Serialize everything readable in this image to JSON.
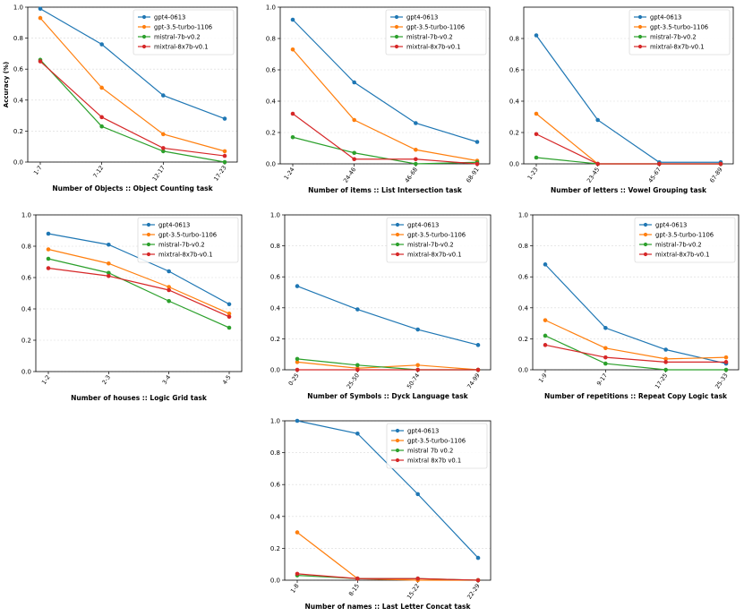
{
  "chart_data": [
    {
      "type": "line",
      "title": "",
      "xlabel": "Number of Objects :: Object Counting task",
      "ylabel": "Accuracy (%)",
      "categories": [
        "1-7",
        "7-12",
        "12-17",
        "17-23"
      ],
      "ylim": [
        0,
        1.0
      ],
      "yticks": [
        0.0,
        0.2,
        0.4,
        0.6,
        0.8,
        1.0
      ],
      "grid": "y",
      "legend": "top-right",
      "series": [
        {
          "name": "gpt4-0613",
          "color": "#1f77b4",
          "values": [
            0.99,
            0.76,
            0.43,
            0.28
          ]
        },
        {
          "name": "gpt-3.5-turbo-1106",
          "color": "#ff7f0e",
          "values": [
            0.93,
            0.48,
            0.18,
            0.07
          ]
        },
        {
          "name": "mistral-7b-v0.2",
          "color": "#2ca02c",
          "values": [
            0.66,
            0.23,
            0.07,
            0.0
          ]
        },
        {
          "name": "mixtral-8x7b-v0.1",
          "color": "#d62728",
          "values": [
            0.65,
            0.29,
            0.09,
            0.04
          ]
        }
      ]
    },
    {
      "type": "line",
      "title": "",
      "xlabel": "Number of items :: List Intersection task",
      "ylabel": "",
      "categories": [
        "1-24",
        "24-46",
        "46-68",
        "68-91"
      ],
      "ylim": [
        0,
        1.0
      ],
      "yticks": [
        0.0,
        0.2,
        0.4,
        0.6,
        0.8,
        1.0
      ],
      "grid": "y",
      "legend": "top-right",
      "series": [
        {
          "name": "gpt4-0613",
          "color": "#1f77b4",
          "values": [
            0.92,
            0.52,
            0.26,
            0.14
          ]
        },
        {
          "name": "gpt-3.5-turbo-1106",
          "color": "#ff7f0e",
          "values": [
            0.73,
            0.28,
            0.09,
            0.02
          ]
        },
        {
          "name": "mistral-7b-v0.2",
          "color": "#2ca02c",
          "values": [
            0.17,
            0.07,
            0.0,
            0.01
          ]
        },
        {
          "name": "mixtral-8x7b-v0.1",
          "color": "#d62728",
          "values": [
            0.32,
            0.03,
            0.03,
            0.0
          ]
        }
      ]
    },
    {
      "type": "line",
      "title": "",
      "xlabel": "Number of letters :: Vowel Grouping task",
      "ylabel": "",
      "categories": [
        "1-23",
        "23-45",
        "45-67",
        "67-89"
      ],
      "ylim": [
        0,
        1.0
      ],
      "yticks": [
        0.0,
        0.2,
        0.4,
        0.6,
        0.8
      ],
      "grid": "y",
      "legend": "top-right",
      "series": [
        {
          "name": "gpt4-0613",
          "color": "#1f77b4",
          "values": [
            0.82,
            0.28,
            0.01,
            0.01
          ]
        },
        {
          "name": "gpt-3.5-turbo-1106",
          "color": "#ff7f0e",
          "values": [
            0.32,
            0.0,
            0.0,
            0.0
          ]
        },
        {
          "name": "mistral-7b-v0.2",
          "color": "#2ca02c",
          "values": [
            0.04,
            0.0,
            0.0,
            0.0
          ]
        },
        {
          "name": "mixtral-8x7b-v0.1",
          "color": "#d62728",
          "values": [
            0.19,
            0.0,
            0.0,
            0.0
          ]
        }
      ]
    },
    {
      "type": "line",
      "title": "",
      "xlabel": "Number of houses :: Logic Grid task",
      "ylabel": "",
      "categories": [
        "1-2",
        "2-3",
        "3-4",
        "4-5"
      ],
      "ylim": [
        0,
        1.0
      ],
      "yticks": [
        0.0,
        0.2,
        0.4,
        0.6,
        0.8,
        1.0
      ],
      "grid": "y",
      "legend": "top-right",
      "series": [
        {
          "name": "gpt4-0613",
          "color": "#1f77b4",
          "values": [
            0.88,
            0.81,
            0.64,
            0.43
          ]
        },
        {
          "name": "gpt-3.5-turbo-1106",
          "color": "#ff7f0e",
          "values": [
            0.78,
            0.69,
            0.54,
            0.37
          ]
        },
        {
          "name": "mistral-7b-v0.2",
          "color": "#2ca02c",
          "values": [
            0.72,
            0.63,
            0.45,
            0.28
          ]
        },
        {
          "name": "mixtral-8x7b-v0.1",
          "color": "#d62728",
          "values": [
            0.66,
            0.61,
            0.52,
            0.35
          ]
        }
      ]
    },
    {
      "type": "line",
      "title": "",
      "xlabel": "Number of Symbols :: Dyck Language task",
      "ylabel": "",
      "categories": [
        "0-25",
        "25-50",
        "50-74",
        "74-99"
      ],
      "ylim": [
        0,
        1.0
      ],
      "yticks": [
        0.0,
        0.2,
        0.4,
        0.6,
        0.8,
        1.0
      ],
      "grid": "y",
      "legend": "top-right",
      "series": [
        {
          "name": "gpt4-0613",
          "color": "#1f77b4",
          "values": [
            0.54,
            0.39,
            0.26,
            0.16
          ]
        },
        {
          "name": "gpt-3.5-turbo-1106",
          "color": "#ff7f0e",
          "values": [
            0.05,
            0.01,
            0.03,
            0.0
          ]
        },
        {
          "name": "mistral-7b-v0.2",
          "color": "#2ca02c",
          "values": [
            0.07,
            0.03,
            0.0,
            0.0
          ]
        },
        {
          "name": "mixtral-8x7b-v0.1",
          "color": "#d62728",
          "values": [
            0.0,
            0.0,
            0.0,
            0.0
          ]
        }
      ]
    },
    {
      "type": "line",
      "title": "",
      "xlabel": "Number of repetitions :: Repeat Copy Logic task",
      "ylabel": "",
      "categories": [
        "1-9",
        "9-17",
        "17-25",
        "25-33"
      ],
      "ylim": [
        0,
        1.0
      ],
      "yticks": [
        0.0,
        0.2,
        0.4,
        0.6,
        0.8,
        1.0
      ],
      "grid": "y",
      "legend": "top-right",
      "series": [
        {
          "name": "gpt4-0613",
          "color": "#1f77b4",
          "values": [
            0.68,
            0.27,
            0.13,
            0.04
          ]
        },
        {
          "name": "gpt-3.5-turbo-1106",
          "color": "#ff7f0e",
          "values": [
            0.32,
            0.14,
            0.07,
            0.08
          ]
        },
        {
          "name": "mistral-7b-v0.2",
          "color": "#2ca02c",
          "values": [
            0.22,
            0.04,
            0.0,
            0.0
          ]
        },
        {
          "name": "mixtral-8x7b-v0.1",
          "color": "#d62728",
          "values": [
            0.16,
            0.08,
            0.05,
            0.05
          ]
        }
      ]
    },
    {
      "type": "line",
      "title": "",
      "xlabel": "Number of names :: Last Letter Concat task",
      "ylabel": "",
      "categories": [
        "1-8",
        "8-15",
        "15-22",
        "22-29"
      ],
      "ylim": [
        0,
        1.0
      ],
      "yticks": [
        0.0,
        0.2,
        0.4,
        0.6,
        0.8,
        1.0
      ],
      "grid": "y",
      "legend": "top-right",
      "series": [
        {
          "name": "gpt4-0613",
          "color": "#1f77b4",
          "values": [
            1.0,
            0.92,
            0.54,
            0.14
          ]
        },
        {
          "name": "gpt-3.5-turbo-1106",
          "color": "#ff7f0e",
          "values": [
            0.3,
            0.01,
            0.0,
            0.0
          ]
        },
        {
          "name": "mistral 7b v0.2",
          "color": "#2ca02c",
          "values": [
            0.03,
            0.01,
            0.01,
            0.0
          ]
        },
        {
          "name": "mixtral 8x7b v0.1",
          "color": "#d62728",
          "values": [
            0.04,
            0.01,
            0.01,
            0.0
          ]
        }
      ]
    }
  ]
}
